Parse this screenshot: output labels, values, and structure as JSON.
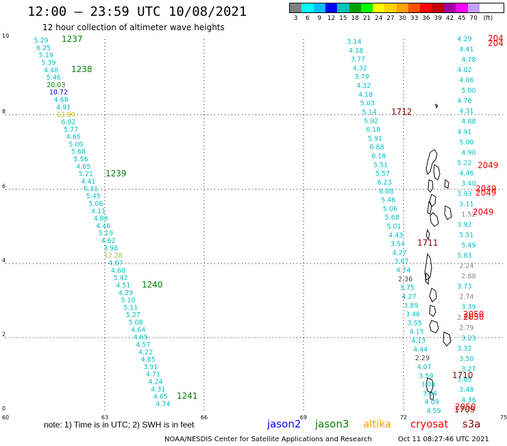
{
  "header": {
    "title": "12:00 – 23:59 UTC 10/08/2021",
    "subtitle": "12 hour collection of altimeter wave heights"
  },
  "colorbar": {
    "colors": [
      "#808080",
      "#00ffff",
      "#00bfff",
      "#0000ff",
      "#00c0c0",
      "#00a000",
      "#00ff00",
      "#ffff00",
      "#ffd000",
      "#ffa000",
      "#ff5000",
      "#ff0000",
      "#c00000",
      "#a000a0",
      "#ff00ff",
      "#c0a0ff",
      "#ffffff",
      "#ffffff"
    ],
    "labels": [
      "3",
      "6",
      "9",
      "12",
      "15",
      "18",
      "21",
      "24",
      "27",
      "30",
      "33",
      "36",
      "39",
      "42",
      "45",
      "70",
      "(ft)"
    ]
  },
  "axes": {
    "x_ticks": [
      "60",
      "63",
      "66",
      "69",
      "72",
      "75"
    ],
    "y_ticks": [
      "0",
      "2",
      "4",
      "6",
      "8",
      "10"
    ]
  },
  "legend": {
    "note": "note:  1) Time is in UTC;  2) SWH is in feet",
    "satellites": [
      {
        "name": "jason2",
        "color": "#0000ff"
      },
      {
        "name": "jason3",
        "color": "#008000"
      },
      {
        "name": "altika",
        "color": "#ffa000"
      },
      {
        "name": "cryosat",
        "color": "#ff0000"
      },
      {
        "name": "s3a",
        "color": "#800000"
      }
    ]
  },
  "footer": {
    "left": "NOAA/NESDIS Center for Satellite Applications and Research",
    "right": "Oct 11 08:27:46 UTC 2021"
  },
  "tracks": [
    {
      "color": "#00c0c0",
      "values": [
        "5.29",
        "6.25",
        "5.19",
        "5.39",
        "4.48",
        "5.46",
        "20.03",
        "10.72",
        "4.68",
        "4.91",
        "13.90",
        "6.02",
        "5.77",
        "4.65",
        "5.00",
        "5.68",
        "5.56",
        "4.65",
        "5.21",
        "4.41",
        "5.31",
        "5.45",
        "5.06",
        "4.11",
        "4.88",
        "4.46",
        "5.19",
        "4.62",
        "3.98",
        "12.28",
        "4.67",
        "4.60",
        "5.42",
        "4.51",
        "4.29",
        "5.10",
        "5.11",
        "5.27",
        "5.08",
        "4.64",
        "4.65",
        "4.57",
        "4.22",
        "4.85",
        "3.91",
        "4.71",
        "4.24",
        "4.31",
        "4.65",
        "4.74"
      ]
    },
    {
      "color": "#00c0c0",
      "values": [
        "3.14",
        "4.18",
        "3.77",
        "4.32",
        "3.79",
        "4.32",
        "4.18",
        "5.03",
        "5.14",
        "5.92",
        "6.18",
        "5.91",
        "6.68",
        "6.18",
        "5.51",
        "5.57",
        "6.23",
        "6.08",
        "5.46",
        "5.06",
        "5.68",
        "5.01",
        "4.43",
        "3.54",
        "4.27",
        "3.67",
        "4.74",
        "2.36",
        "3.75",
        "4.27",
        "3.89",
        "3.46",
        "3.55",
        "4.15",
        "4.13",
        "4.44",
        "2.29",
        "4.07",
        "3.59",
        "3.08",
        "3.04",
        "4.09",
        "4.59"
      ]
    },
    {
      "color": "#00c0c0",
      "values": [
        "4.29",
        "4.41",
        "4.78",
        "4.02",
        "4.06",
        "5.00",
        "4.76",
        "4.31",
        "4.88",
        "4.91",
        "5.00",
        "4.90",
        "5.22",
        "4.46",
        "3.40",
        "3.93",
        "3.11",
        "1.52",
        "3.92",
        "5.51",
        "5.49",
        "5.83",
        "2.24",
        "2.88",
        "3.73",
        "2.74",
        "3.39",
        "2.94",
        "2.79",
        "3.23",
        "3.32",
        "3.50",
        "3.27",
        "3.05",
        "3.48",
        "4.36"
      ]
    }
  ],
  "track_labels": [
    {
      "text": "1237",
      "color": "#008000"
    },
    {
      "text": "1238",
      "color": "#008000"
    },
    {
      "text": "1239",
      "color": "#008000"
    },
    {
      "text": "1240",
      "color": "#008000"
    },
    {
      "text": "1241",
      "color": "#008000"
    },
    {
      "text": "1712",
      "color": "#800000"
    },
    {
      "text": "1711",
      "color": "#800000"
    },
    {
      "text": "1710",
      "color": "#800000"
    },
    {
      "text": "1709",
      "color": "#800000"
    },
    {
      "text": "2049",
      "color": "#ff0000"
    },
    {
      "text": "2049",
      "color": "#ff0000"
    },
    {
      "text": "2049",
      "color": "#ff0000"
    },
    {
      "text": "2049",
      "color": "#ff0000"
    },
    {
      "text": "2050",
      "color": "#ff0000"
    },
    {
      "text": "2050",
      "color": "#ff0000"
    },
    {
      "text": "2050",
      "color": "#ff0000"
    },
    {
      "text": "204",
      "color": "#ff0000"
    },
    {
      "text": "204",
      "color": "#ff0000"
    }
  ]
}
